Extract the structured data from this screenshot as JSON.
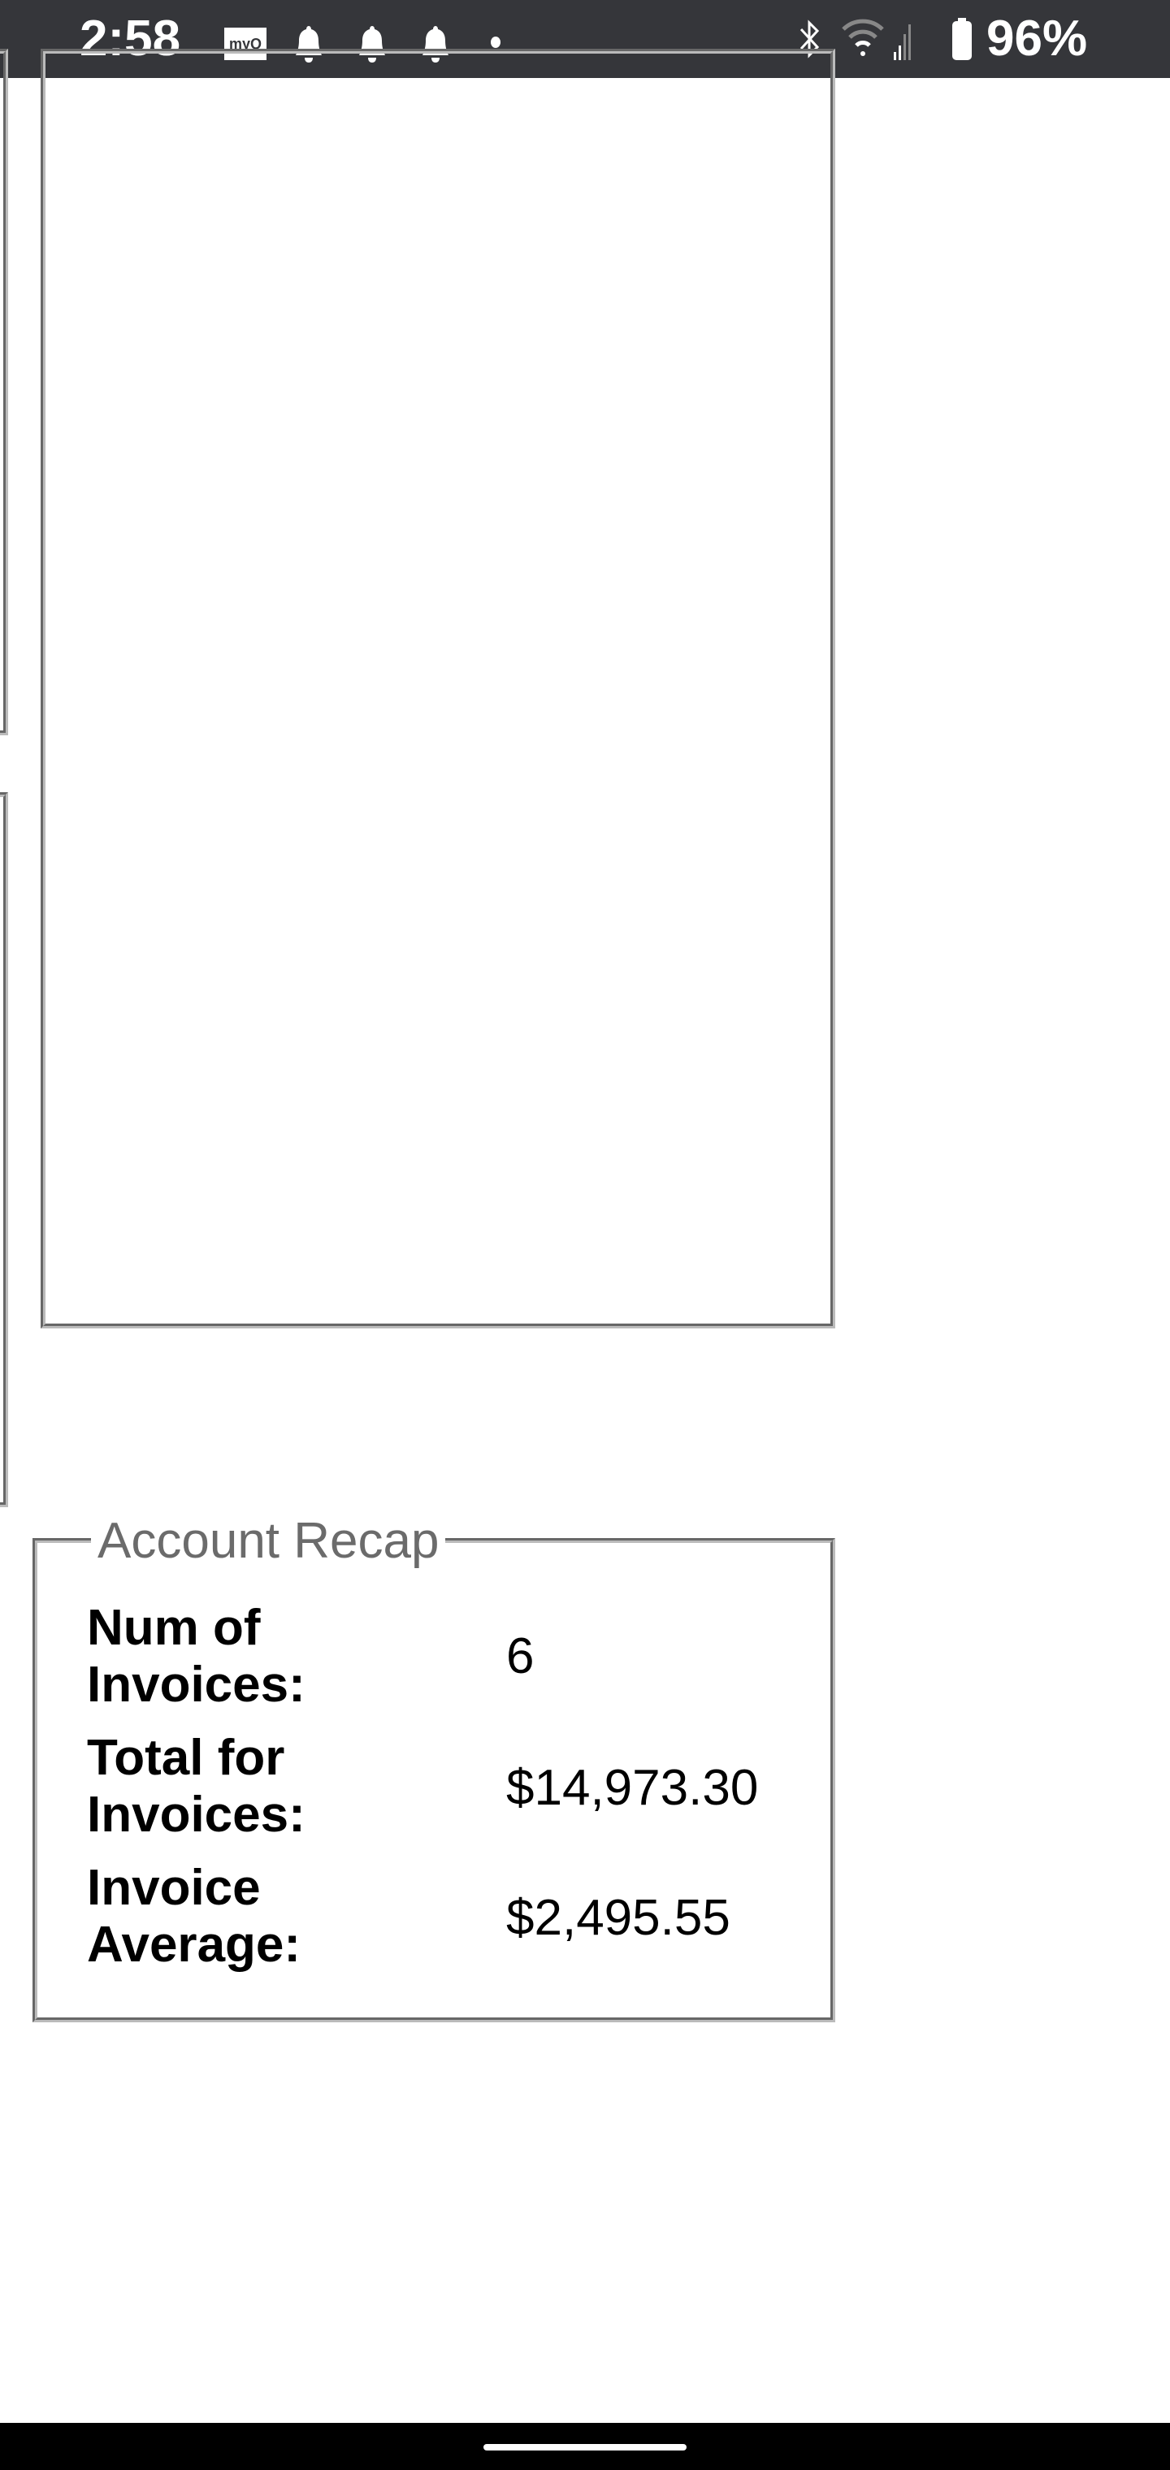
{
  "status_bar": {
    "time": "2:58",
    "notification_icons": [
      "myq-app-icon",
      "bell-icon",
      "bell-icon",
      "bell-icon",
      "more-dot-icon"
    ],
    "myq_logo": "myQ",
    "system_icons": [
      "bluetooth-icon",
      "wifi-icon",
      "cell-signal-icon",
      "battery-icon"
    ],
    "battery": "96%"
  },
  "account_recap": {
    "legend": "Account Recap",
    "rows": [
      {
        "label": "Num of Invoices:",
        "value": "6"
      },
      {
        "label": "Total for Invoices:",
        "value": "$14,973.30"
      },
      {
        "label": "Invoice Average:",
        "value": "$2,495.55"
      }
    ]
  },
  "colors": {
    "status_bar_bg": "#35363a",
    "border": "#6b6b6b",
    "legend_text": "#6b6b6b"
  }
}
